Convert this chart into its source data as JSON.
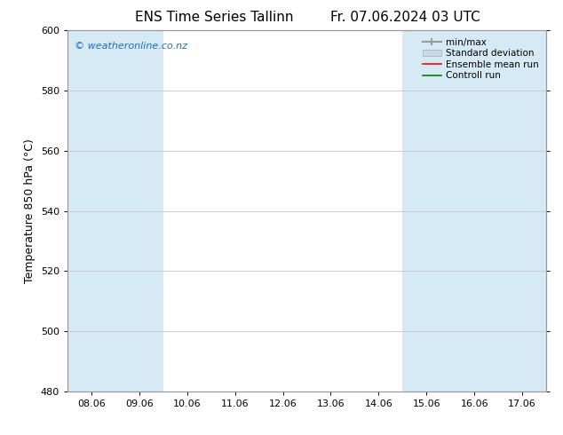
{
  "title_left": "ENS Time Series Tallinn",
  "title_right": "Fr. 07.06.2024 03 UTC",
  "ylabel": "Temperature 850 hPa (°C)",
  "xlim_dates": [
    "08.06",
    "09.06",
    "10.06",
    "11.06",
    "12.06",
    "13.06",
    "14.06",
    "15.06",
    "16.06",
    "17.06"
  ],
  "ylim": [
    480,
    600
  ],
  "yticks": [
    480,
    500,
    520,
    540,
    560,
    580,
    600
  ],
  "bg_color": "#ffffff",
  "plot_bg_color": "#ffffff",
  "watermark": "© weatheronline.co.nz",
  "watermark_color": "#1a6fc4",
  "shade_color": "#d6eaf5",
  "minmax_color": "#aaaaaa",
  "stddev_color": "#c8daea",
  "ensemble_mean_color": "#ff0000",
  "control_run_color": "#008000",
  "legend_labels": [
    "min/max",
    "Standard deviation",
    "Ensemble mean run",
    "Controll run"
  ],
  "grid_color": "#cccccc",
  "tick_label_fontsize": 8,
  "axis_label_fontsize": 9,
  "title_fontsize": 11
}
